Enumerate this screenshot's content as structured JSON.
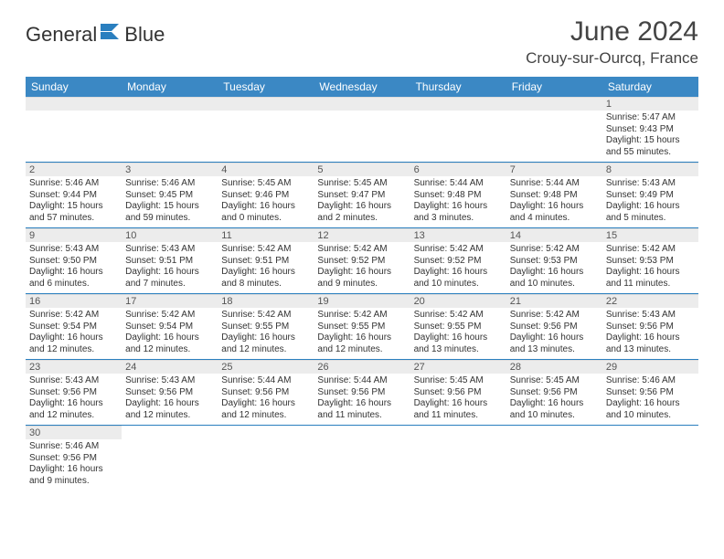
{
  "brand": {
    "name1": "General",
    "name2": "Blue"
  },
  "title": "June 2024",
  "location": "Crouy-sur-Ourcq, France",
  "colors": {
    "header_bg": "#3b88c4",
    "header_text": "#ffffff",
    "daynum_bg": "#ececec",
    "border": "#2a7fbf",
    "text": "#333333",
    "brand_blue": "#2a7fbf"
  },
  "weekdays": [
    "Sunday",
    "Monday",
    "Tuesday",
    "Wednesday",
    "Thursday",
    "Friday",
    "Saturday"
  ],
  "weeks": [
    [
      null,
      null,
      null,
      null,
      null,
      null,
      {
        "d": "1",
        "sr": "Sunrise: 5:47 AM",
        "ss": "Sunset: 9:43 PM",
        "dl1": "Daylight: 15 hours",
        "dl2": "and 55 minutes."
      }
    ],
    [
      {
        "d": "2",
        "sr": "Sunrise: 5:46 AM",
        "ss": "Sunset: 9:44 PM",
        "dl1": "Daylight: 15 hours",
        "dl2": "and 57 minutes."
      },
      {
        "d": "3",
        "sr": "Sunrise: 5:46 AM",
        "ss": "Sunset: 9:45 PM",
        "dl1": "Daylight: 15 hours",
        "dl2": "and 59 minutes."
      },
      {
        "d": "4",
        "sr": "Sunrise: 5:45 AM",
        "ss": "Sunset: 9:46 PM",
        "dl1": "Daylight: 16 hours",
        "dl2": "and 0 minutes."
      },
      {
        "d": "5",
        "sr": "Sunrise: 5:45 AM",
        "ss": "Sunset: 9:47 PM",
        "dl1": "Daylight: 16 hours",
        "dl2": "and 2 minutes."
      },
      {
        "d": "6",
        "sr": "Sunrise: 5:44 AM",
        "ss": "Sunset: 9:48 PM",
        "dl1": "Daylight: 16 hours",
        "dl2": "and 3 minutes."
      },
      {
        "d": "7",
        "sr": "Sunrise: 5:44 AM",
        "ss": "Sunset: 9:48 PM",
        "dl1": "Daylight: 16 hours",
        "dl2": "and 4 minutes."
      },
      {
        "d": "8",
        "sr": "Sunrise: 5:43 AM",
        "ss": "Sunset: 9:49 PM",
        "dl1": "Daylight: 16 hours",
        "dl2": "and 5 minutes."
      }
    ],
    [
      {
        "d": "9",
        "sr": "Sunrise: 5:43 AM",
        "ss": "Sunset: 9:50 PM",
        "dl1": "Daylight: 16 hours",
        "dl2": "and 6 minutes."
      },
      {
        "d": "10",
        "sr": "Sunrise: 5:43 AM",
        "ss": "Sunset: 9:51 PM",
        "dl1": "Daylight: 16 hours",
        "dl2": "and 7 minutes."
      },
      {
        "d": "11",
        "sr": "Sunrise: 5:42 AM",
        "ss": "Sunset: 9:51 PM",
        "dl1": "Daylight: 16 hours",
        "dl2": "and 8 minutes."
      },
      {
        "d": "12",
        "sr": "Sunrise: 5:42 AM",
        "ss": "Sunset: 9:52 PM",
        "dl1": "Daylight: 16 hours",
        "dl2": "and 9 minutes."
      },
      {
        "d": "13",
        "sr": "Sunrise: 5:42 AM",
        "ss": "Sunset: 9:52 PM",
        "dl1": "Daylight: 16 hours",
        "dl2": "and 10 minutes."
      },
      {
        "d": "14",
        "sr": "Sunrise: 5:42 AM",
        "ss": "Sunset: 9:53 PM",
        "dl1": "Daylight: 16 hours",
        "dl2": "and 10 minutes."
      },
      {
        "d": "15",
        "sr": "Sunrise: 5:42 AM",
        "ss": "Sunset: 9:53 PM",
        "dl1": "Daylight: 16 hours",
        "dl2": "and 11 minutes."
      }
    ],
    [
      {
        "d": "16",
        "sr": "Sunrise: 5:42 AM",
        "ss": "Sunset: 9:54 PM",
        "dl1": "Daylight: 16 hours",
        "dl2": "and 12 minutes."
      },
      {
        "d": "17",
        "sr": "Sunrise: 5:42 AM",
        "ss": "Sunset: 9:54 PM",
        "dl1": "Daylight: 16 hours",
        "dl2": "and 12 minutes."
      },
      {
        "d": "18",
        "sr": "Sunrise: 5:42 AM",
        "ss": "Sunset: 9:55 PM",
        "dl1": "Daylight: 16 hours",
        "dl2": "and 12 minutes."
      },
      {
        "d": "19",
        "sr": "Sunrise: 5:42 AM",
        "ss": "Sunset: 9:55 PM",
        "dl1": "Daylight: 16 hours",
        "dl2": "and 12 minutes."
      },
      {
        "d": "20",
        "sr": "Sunrise: 5:42 AM",
        "ss": "Sunset: 9:55 PM",
        "dl1": "Daylight: 16 hours",
        "dl2": "and 13 minutes."
      },
      {
        "d": "21",
        "sr": "Sunrise: 5:42 AM",
        "ss": "Sunset: 9:56 PM",
        "dl1": "Daylight: 16 hours",
        "dl2": "and 13 minutes."
      },
      {
        "d": "22",
        "sr": "Sunrise: 5:43 AM",
        "ss": "Sunset: 9:56 PM",
        "dl1": "Daylight: 16 hours",
        "dl2": "and 13 minutes."
      }
    ],
    [
      {
        "d": "23",
        "sr": "Sunrise: 5:43 AM",
        "ss": "Sunset: 9:56 PM",
        "dl1": "Daylight: 16 hours",
        "dl2": "and 12 minutes."
      },
      {
        "d": "24",
        "sr": "Sunrise: 5:43 AM",
        "ss": "Sunset: 9:56 PM",
        "dl1": "Daylight: 16 hours",
        "dl2": "and 12 minutes."
      },
      {
        "d": "25",
        "sr": "Sunrise: 5:44 AM",
        "ss": "Sunset: 9:56 PM",
        "dl1": "Daylight: 16 hours",
        "dl2": "and 12 minutes."
      },
      {
        "d": "26",
        "sr": "Sunrise: 5:44 AM",
        "ss": "Sunset: 9:56 PM",
        "dl1": "Daylight: 16 hours",
        "dl2": "and 11 minutes."
      },
      {
        "d": "27",
        "sr": "Sunrise: 5:45 AM",
        "ss": "Sunset: 9:56 PM",
        "dl1": "Daylight: 16 hours",
        "dl2": "and 11 minutes."
      },
      {
        "d": "28",
        "sr": "Sunrise: 5:45 AM",
        "ss": "Sunset: 9:56 PM",
        "dl1": "Daylight: 16 hours",
        "dl2": "and 10 minutes."
      },
      {
        "d": "29",
        "sr": "Sunrise: 5:46 AM",
        "ss": "Sunset: 9:56 PM",
        "dl1": "Daylight: 16 hours",
        "dl2": "and 10 minutes."
      }
    ],
    [
      {
        "d": "30",
        "sr": "Sunrise: 5:46 AM",
        "ss": "Sunset: 9:56 PM",
        "dl1": "Daylight: 16 hours",
        "dl2": "and 9 minutes."
      },
      null,
      null,
      null,
      null,
      null,
      null
    ]
  ]
}
